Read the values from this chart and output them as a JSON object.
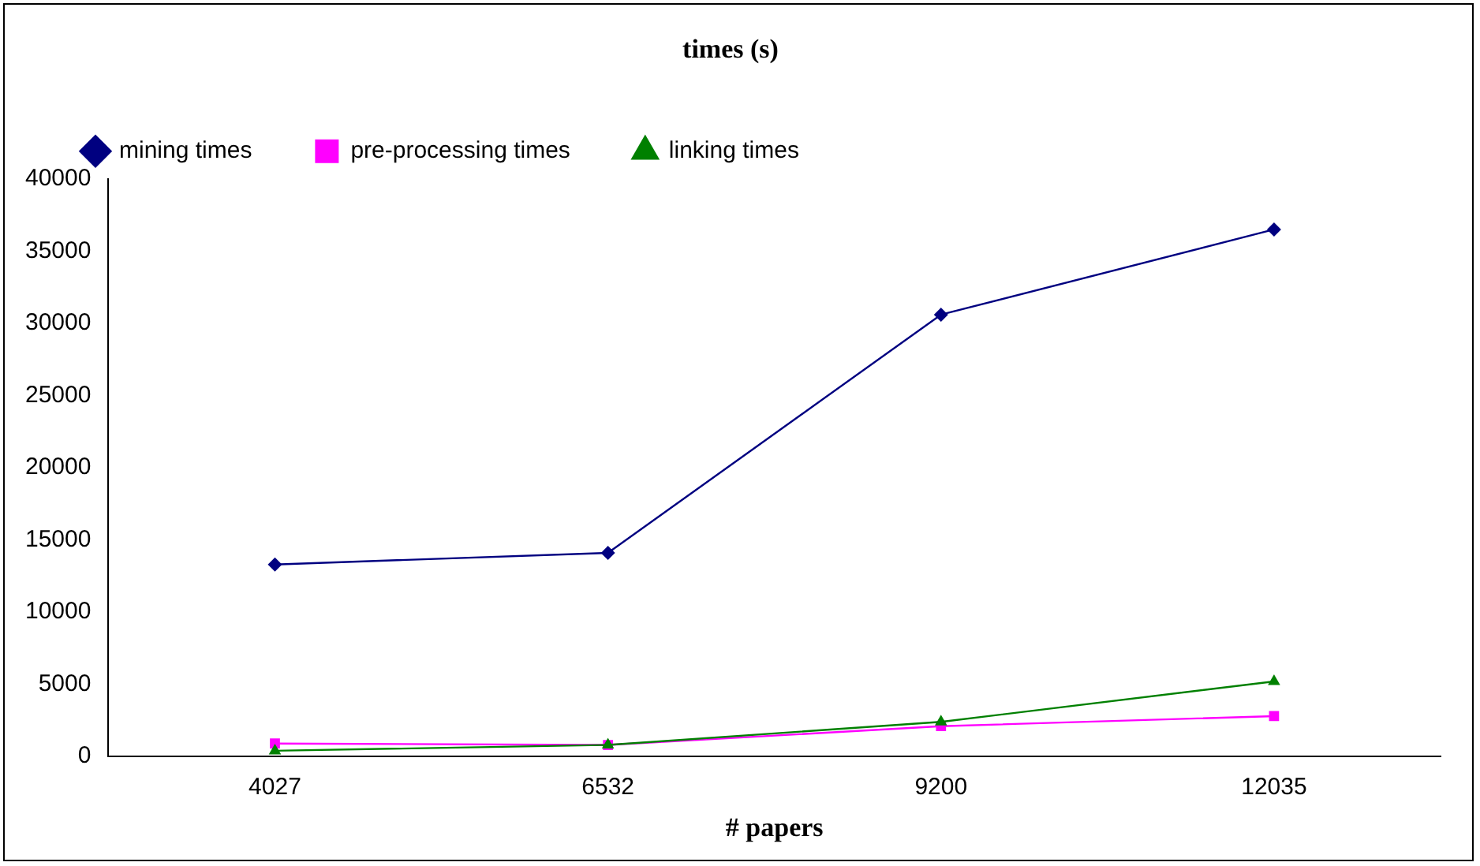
{
  "chart_data": {
    "type": "line",
    "title": "times (s)",
    "xlabel": "# papers",
    "categories": [
      "4027",
      "6532",
      "9200",
      "12035"
    ],
    "series": [
      {
        "name": "mining times",
        "color": "#000080",
        "marker": "diamond",
        "values": [
          13300,
          14100,
          30600,
          36500
        ]
      },
      {
        "name": "pre-processing times",
        "color": "#ff00ff",
        "marker": "square",
        "values": [
          900,
          800,
          2100,
          2800
        ]
      },
      {
        "name": "linking times",
        "color": "#008000",
        "marker": "triangle",
        "values": [
          400,
          800,
          2400,
          5200
        ]
      }
    ],
    "ylim": [
      0,
      40000
    ],
    "yticks": [
      0,
      5000,
      10000,
      15000,
      20000,
      25000,
      30000,
      35000,
      40000
    ],
    "grid": false,
    "legend": "top"
  }
}
